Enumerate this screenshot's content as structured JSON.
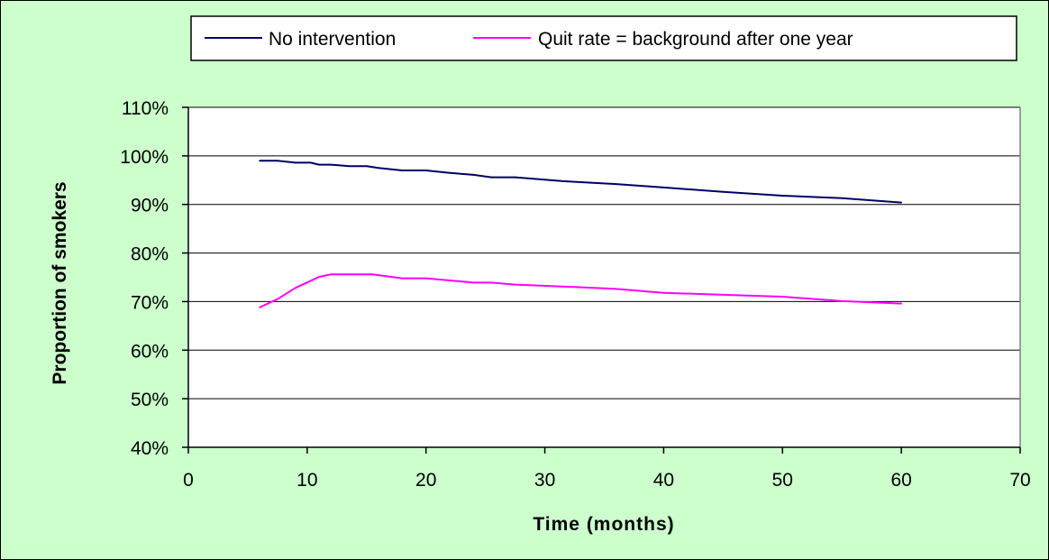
{
  "chart_data": {
    "type": "line",
    "title": "",
    "xlabel": "Time (months)",
    "ylabel": "Proportion of smokers",
    "xlim": [
      0,
      70
    ],
    "ylim": [
      40,
      110
    ],
    "x_ticks": [
      0,
      10,
      20,
      30,
      40,
      50,
      60,
      70
    ],
    "y_ticks": [
      40,
      50,
      60,
      70,
      80,
      90,
      100,
      110
    ],
    "x_tick_labels": [
      "0",
      "10",
      "20",
      "30",
      "40",
      "50",
      "60",
      "70"
    ],
    "y_tick_labels": [
      "40%",
      "50%",
      "60%",
      "70%",
      "80%",
      "90%",
      "100%",
      "110%"
    ],
    "grid": "horizontal",
    "legend_position": "top",
    "series": [
      {
        "name": "No intervention",
        "color": "#000066",
        "points": [
          [
            6,
            99.0
          ],
          [
            7.5,
            99.0
          ],
          [
            9,
            98.6
          ],
          [
            10.3,
            98.6
          ],
          [
            11,
            98.2
          ],
          [
            12,
            98.2
          ],
          [
            13.5,
            97.9
          ],
          [
            15,
            97.9
          ],
          [
            16,
            97.5
          ],
          [
            18,
            97.0
          ],
          [
            20,
            97.0
          ],
          [
            22,
            96.5
          ],
          [
            24,
            96.1
          ],
          [
            25.5,
            95.6
          ],
          [
            27.5,
            95.6
          ],
          [
            30,
            95.1
          ],
          [
            31.5,
            94.8
          ],
          [
            36,
            94.2
          ],
          [
            40,
            93.5
          ],
          [
            45,
            92.6
          ],
          [
            50,
            91.8
          ],
          [
            55,
            91.3
          ],
          [
            60,
            90.4
          ]
        ]
      },
      {
        "name": "Quit rate = background after one year",
        "color": "#ff00ff",
        "points": [
          [
            6,
            68.8
          ],
          [
            7.5,
            70.5
          ],
          [
            9,
            72.8
          ],
          [
            10.5,
            74.5
          ],
          [
            11,
            75.1
          ],
          [
            12,
            75.6
          ],
          [
            13.5,
            75.6
          ],
          [
            15.5,
            75.6
          ],
          [
            18,
            74.8
          ],
          [
            20,
            74.8
          ],
          [
            24,
            73.9
          ],
          [
            25.5,
            73.9
          ],
          [
            27.5,
            73.5
          ],
          [
            31.5,
            73.1
          ],
          [
            36,
            72.6
          ],
          [
            40,
            71.8
          ],
          [
            45,
            71.4
          ],
          [
            50,
            71.0
          ],
          [
            55,
            70.1
          ],
          [
            60,
            69.6
          ]
        ]
      }
    ]
  }
}
